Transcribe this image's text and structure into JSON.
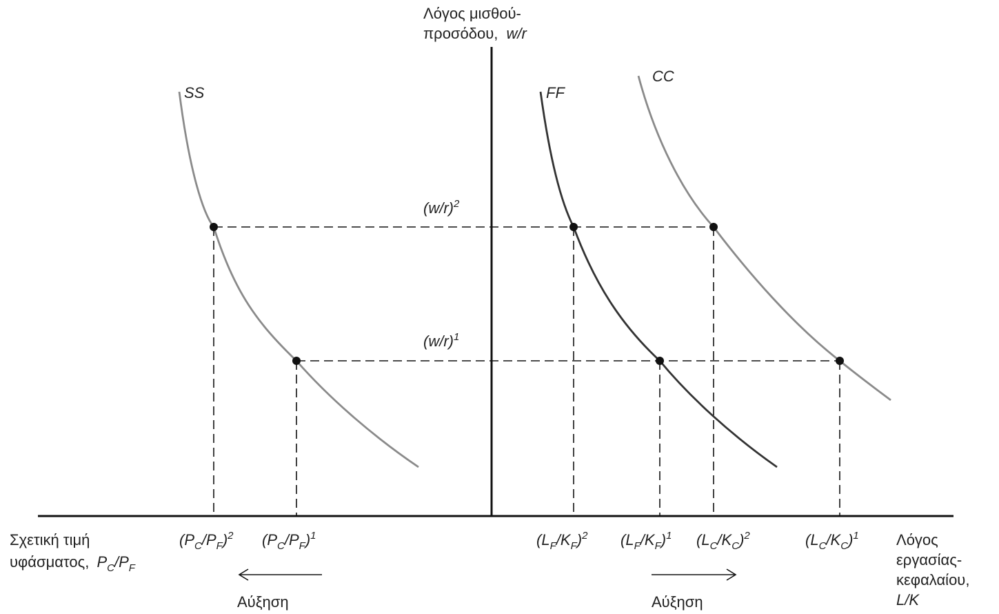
{
  "axes": {
    "y_label_line1": "Λόγος μισθού-",
    "y_label_line2": "προσόδου,",
    "y_label_var": "w/r",
    "x_left_line1": "Σχετική τιμή",
    "x_left_line2": "υφάσματος,",
    "x_right_line1": "Λόγος",
    "x_right_line2": "εργασίας-",
    "x_right_line3": "κεφαλαίου,",
    "x_right_line4": "L/K"
  },
  "curves": {
    "ss": "SS",
    "ff": "FF",
    "cc": "CC"
  },
  "levels": {
    "wr_base": "(w/r)",
    "wr_high_sup": "2",
    "wr_low_sup": "1"
  },
  "ticks": {
    "pc_pf_2_sup": "2",
    "pc_pf_1_sup": "1",
    "lf_kf_2_sup": "2",
    "lf_kf_1_sup": "1",
    "lc_kc_2_sup": "2",
    "lc_kc_1_sup": "1",
    "P": "P",
    "L": "L",
    "K": "K",
    "C": "C",
    "F": "F"
  },
  "arrows": {
    "left_label": "Αύξηση",
    "right_label": "Αύξηση"
  },
  "colors": {
    "light_curve": "#8a8a8a",
    "dark_curve": "#333333"
  }
}
